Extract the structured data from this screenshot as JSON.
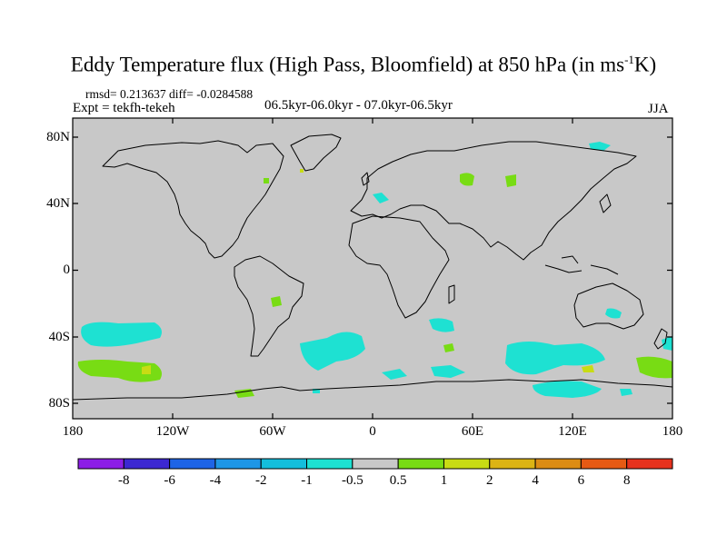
{
  "title": "Eddy Temperature flux (High Pass, Bloomfield) at 850 hPa (in ms",
  "title_sup": "-1",
  "title_end": "K)",
  "stats": "rmsd= 0.213637 diff= -0.0284588",
  "expt": "Expt = tekfh-tekeh",
  "period": "06.5kyr-06.0kyr - 07.0kyr-06.5kyr",
  "season": "JJA",
  "lat_labels": [
    "80N",
    "40N",
    "0",
    "40S",
    "80S"
  ],
  "lon_labels": [
    "180",
    "120W",
    "60W",
    "0",
    "60E",
    "120E",
    "180"
  ],
  "colorbar": {
    "labels": [
      "-8",
      "-6",
      "-4",
      "-2",
      "-1",
      "-0.5",
      "0.5",
      "1",
      "2",
      "4",
      "6",
      "8"
    ],
    "colors": [
      "#8c1ee6",
      "#3c28d2",
      "#1e64e6",
      "#1e96e6",
      "#14bedc",
      "#1ee1d2",
      "#c8c8c8",
      "#78dc14",
      "#c8dc14",
      "#dcb414",
      "#dc8c14",
      "#e65a14",
      "#e6321e"
    ]
  },
  "colors": {
    "background_field": "#c8c8c8",
    "negative_small": "#1ee1d2",
    "positive_small": "#78dc14",
    "positive_mid": "#c8dc14",
    "coastline": "#000000"
  }
}
